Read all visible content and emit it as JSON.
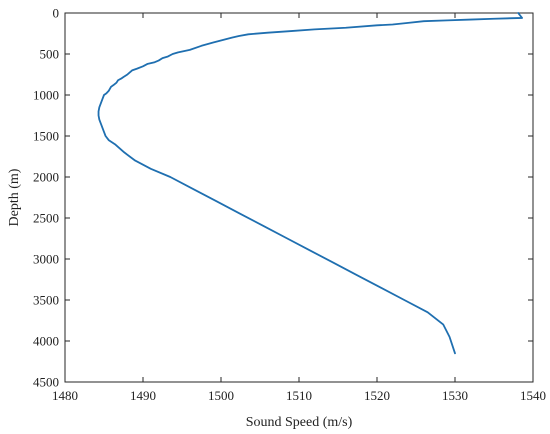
{
  "chart_data": {
    "type": "line",
    "title": "",
    "xlabel": "Sound Speed (m/s)",
    "ylabel": "Depth (m)",
    "xlim": [
      1480,
      1540
    ],
    "ylim": [
      0,
      4500
    ],
    "y_reversed": true,
    "grid": false,
    "x_ticks": [
      "1480",
      "1490",
      "1500",
      "1510",
      "1520",
      "1530",
      "1540"
    ],
    "y_ticks": [
      "0",
      "500",
      "1000",
      "1500",
      "2000",
      "2500",
      "3000",
      "3500",
      "4000",
      "4500"
    ],
    "series": [
      {
        "color": "#1f6fb0",
        "x": [
          1538.1,
          1538.6,
          1535,
          1532,
          1529,
          1526,
          1524,
          1522,
          1520,
          1516,
          1512,
          1509,
          1506,
          1503.5,
          1502.3,
          1501.4,
          1500.6,
          1499.8,
          1499,
          1497.5,
          1496,
          1494.5,
          1493.8,
          1493.2,
          1492.5,
          1492,
          1491.5,
          1490.6,
          1490,
          1489.2,
          1488.6,
          1488,
          1487.5,
          1487.2,
          1486.8,
          1486.6,
          1486.2,
          1485.9,
          1485.6,
          1485.3,
          1485,
          1484.8,
          1484.6,
          1484.4,
          1484.3,
          1484.3,
          1484.4,
          1484.6,
          1484.8,
          1485.0,
          1485.2,
          1485.6,
          1486.4,
          1487.6,
          1489.0,
          1491.0,
          1493.5,
          1496.5,
          1499.5,
          1502.5,
          1505.5,
          1508.5,
          1511.5,
          1514.5,
          1517.5,
          1520.5,
          1523.5,
          1526.5,
          1528.5,
          1529.3,
          1530.0
        ],
        "y": [
          0,
          60,
          70,
          80,
          90,
          100,
          120,
          140,
          150,
          180,
          200,
          220,
          240,
          260,
          280,
          300,
          320,
          340,
          360,
          400,
          450,
          480,
          500,
          530,
          550,
          580,
          600,
          620,
          650,
          680,
          700,
          750,
          780,
          800,
          820,
          850,
          880,
          900,
          950,
          980,
          1000,
          1050,
          1100,
          1150,
          1200,
          1250,
          1300,
          1350,
          1400,
          1450,
          1500,
          1550,
          1600,
          1700,
          1800,
          1900,
          2000,
          2150,
          2300,
          2450,
          2600,
          2750,
          2900,
          3050,
          3200,
          3350,
          3500,
          3650,
          3800,
          3950,
          4150
        ]
      }
    ]
  }
}
